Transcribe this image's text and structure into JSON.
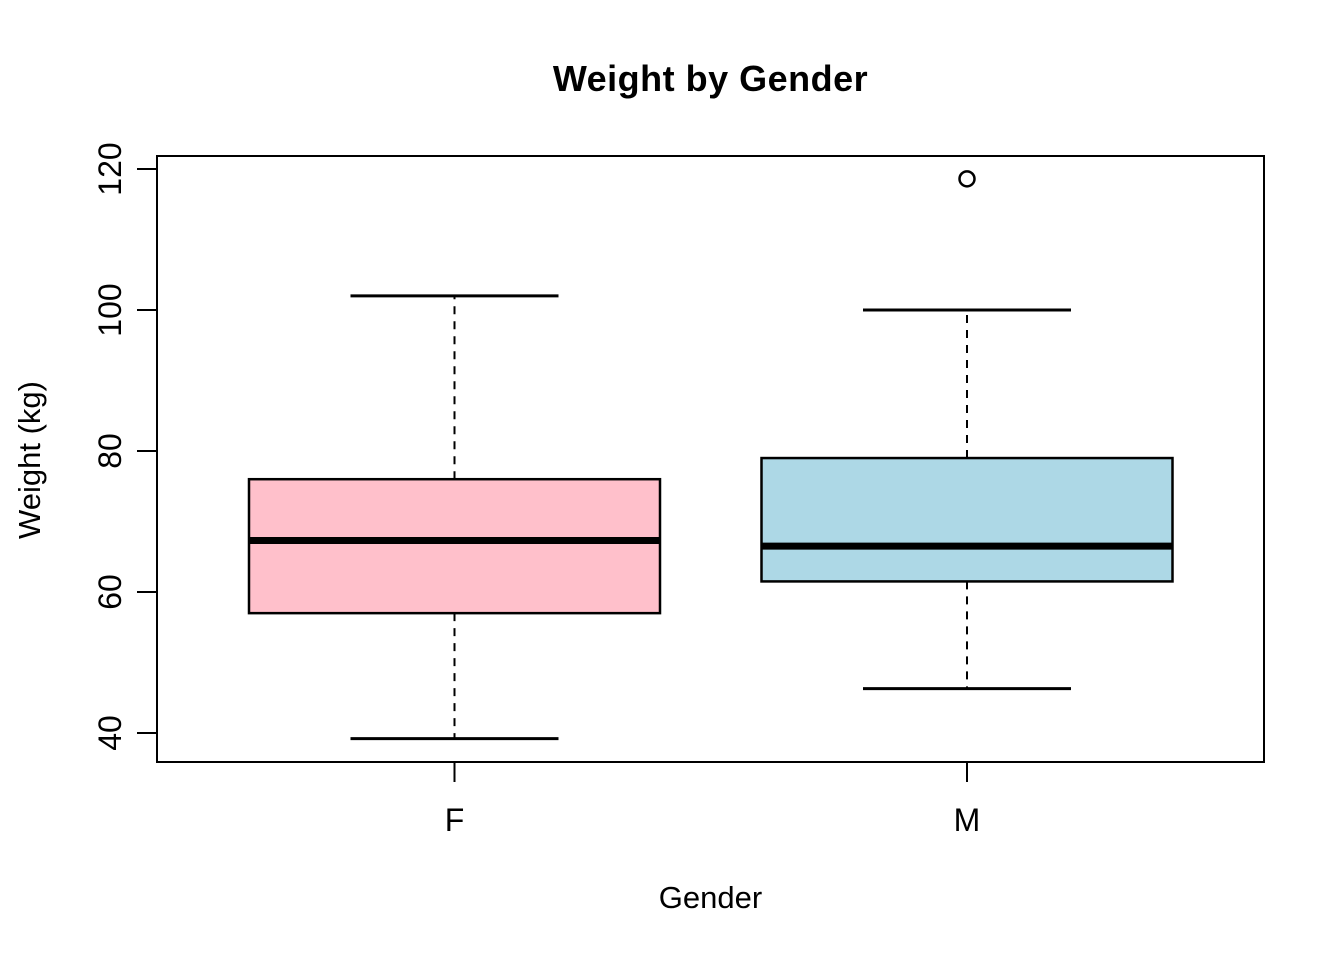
{
  "figure": {
    "background": "#FFFFFF"
  },
  "chart_data": {
    "type": "boxplot",
    "title": "Weight by Gender",
    "xlabel": "Gender",
    "ylabel": "Weight (kg)",
    "categories": [
      "F",
      "M"
    ],
    "yticks": [
      120,
      100,
      80,
      60,
      40
    ],
    "ylim": [
      36,
      122
    ],
    "grid": false,
    "legend": "none",
    "series": [
      {
        "name": "F",
        "whisker_low": 39.2,
        "q1": 57,
        "median": 67.3,
        "q3": 76,
        "whisker_high": 102,
        "outliers": [],
        "fill": "#FFC0CB"
      },
      {
        "name": "M",
        "whisker_low": 46.3,
        "q1": 61.5,
        "median": 66.5,
        "q3": 79,
        "whisker_high": 100,
        "outliers": [
          118.6
        ],
        "fill": "#ADD8E6"
      }
    ],
    "colors": {
      "stroke": "#000000",
      "median": "#000000",
      "outlier_fill": "#FFFFFF",
      "plot_border": "#000000"
    }
  }
}
